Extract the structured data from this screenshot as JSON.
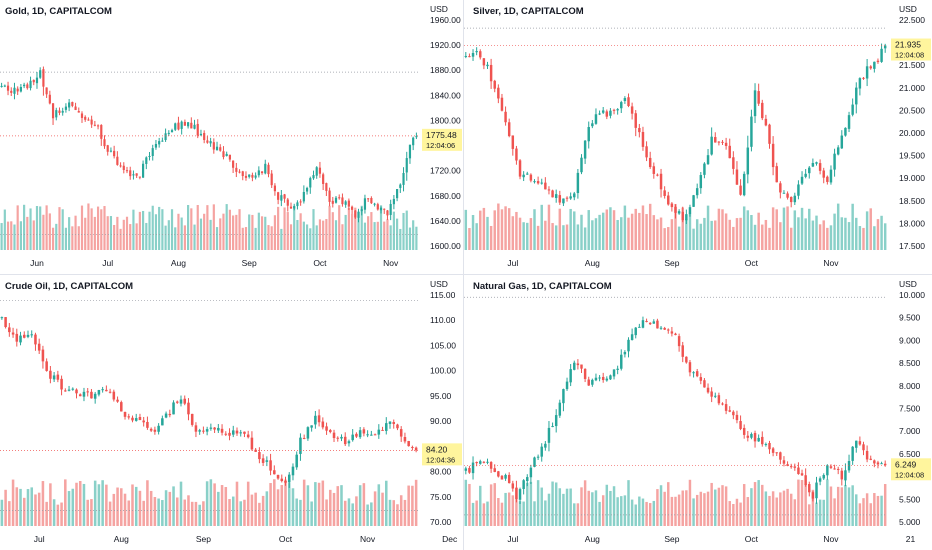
{
  "layout": {
    "name": "four-panel chart grid",
    "panels": 4
  },
  "colors": {
    "up": "#26a69a",
    "down": "#ef5350",
    "up_volume": "#89d0c8",
    "down_volume": "#f5a3a1",
    "price_label_bg": "#fff59d",
    "axis_text": "#131722",
    "reference_line": "#9598a1",
    "last_price_line": "#ef5350"
  },
  "chart_data": [
    {
      "type": "candlestick",
      "title": "Gold, 1D, CAPITALCOM",
      "currency": "USD",
      "y_ticks": [
        "1960.00",
        "1920.00",
        "1880.00",
        "1840.00",
        "1800.00",
        "1760.00",
        "1720.00",
        "1680.00",
        "1640.00",
        "1600.00"
      ],
      "ylim": [
        1600,
        1960
      ],
      "x_ticks": [
        "Jun",
        "Jul",
        "Aug",
        "Sep",
        "Oct",
        "Nov"
      ],
      "x_tick_positions": [
        11,
        33,
        55,
        77,
        99,
        121
      ],
      "num_bars": 130,
      "last_price": "1775.48",
      "last_price_value": 1775.48,
      "countdown": "12:04:06",
      "reference_line": 1877,
      "volume_reference_fraction": 0.35,
      "closes": [
        [
          0,
          1852
        ],
        [
          6,
          1848
        ],
        [
          12,
          1875
        ],
        [
          16,
          1810
        ],
        [
          20,
          1825
        ],
        [
          24,
          1812
        ],
        [
          30,
          1785
        ],
        [
          34,
          1745
        ],
        [
          38,
          1720
        ],
        [
          42,
          1705
        ],
        [
          46,
          1745
        ],
        [
          52,
          1785
        ],
        [
          58,
          1798
        ],
        [
          64,
          1765
        ],
        [
          70,
          1740
        ],
        [
          76,
          1710
        ],
        [
          82,
          1725
        ],
        [
          86,
          1680
        ],
        [
          90,
          1660
        ],
        [
          94,
          1680
        ],
        [
          98,
          1730
        ],
        [
          102,
          1668
        ],
        [
          106,
          1672
        ],
        [
          110,
          1652
        ],
        [
          114,
          1678
        ],
        [
          120,
          1648
        ],
        [
          124,
          1700
        ],
        [
          127,
          1765
        ],
        [
          129,
          1775
        ]
      ]
    },
    {
      "type": "candlestick",
      "title": "Silver, 1D, CAPITALCOM",
      "currency": "USD",
      "y_ticks": [
        "22.500",
        "22.000",
        "21.500",
        "21.000",
        "20.500",
        "20.000",
        "19.500",
        "19.000",
        "18.500",
        "18.000",
        "17.500"
      ],
      "ylim": [
        17.5,
        22.5
      ],
      "x_ticks": [
        "Jul",
        "Aug",
        "Sep",
        "Oct",
        "Nov"
      ],
      "x_tick_positions": [
        13,
        35,
        57,
        79,
        101
      ],
      "num_bars": 117,
      "last_price": "21.935",
      "last_price_value": 21.935,
      "countdown": "12:04:08",
      "reference_line": 22.32,
      "volume_reference_fraction": 0,
      "closes": [
        [
          0,
          21.65
        ],
        [
          3,
          21.75
        ],
        [
          6,
          21.5
        ],
        [
          9,
          20.7
        ],
        [
          12,
          19.9
        ],
        [
          15,
          19.1
        ],
        [
          18,
          19.0
        ],
        [
          21,
          18.9
        ],
        [
          24,
          18.6
        ],
        [
          27,
          18.5
        ],
        [
          30,
          18.7
        ],
        [
          33,
          19.9
        ],
        [
          36,
          20.5
        ],
        [
          40,
          20.4
        ],
        [
          44,
          20.8
        ],
        [
          47,
          20.2
        ],
        [
          50,
          19.4
        ],
        [
          53,
          19.0
        ],
        [
          56,
          18.5
        ],
        [
          60,
          18.1
        ],
        [
          64,
          18.7
        ],
        [
          68,
          19.9
        ],
        [
          72,
          19.7
        ],
        [
          76,
          18.6
        ],
        [
          80,
          20.9
        ],
        [
          83,
          20.1
        ],
        [
          86,
          18.9
        ],
        [
          90,
          18.4
        ],
        [
          93,
          19.0
        ],
        [
          96,
          19.4
        ],
        [
          100,
          19.0
        ],
        [
          104,
          19.9
        ],
        [
          106,
          20.4
        ],
        [
          108,
          21.0
        ],
        [
          111,
          21.4
        ],
        [
          114,
          21.6
        ],
        [
          116,
          21.935
        ]
      ]
    },
    {
      "type": "candlestick",
      "title": "Crude Oil, 1D, CAPITALCOM",
      "currency": "USD",
      "y_ticks": [
        "115.00",
        "110.00",
        "105.00",
        "100.00",
        "95.00",
        "90.00",
        "85.00",
        "80.00",
        "75.00",
        "70.00"
      ],
      "ylim": [
        70,
        115
      ],
      "x_ticks": [
        "Jul",
        "Aug",
        "Sep",
        "Oct",
        "Nov",
        "Dec"
      ],
      "x_tick_positions": [
        10,
        32,
        54,
        76,
        98,
        120
      ],
      "num_bars": 112,
      "last_price": "84.20",
      "last_price_value": 84.2,
      "countdown": "12:04:36",
      "reference_line": 113.9,
      "volume_reference_fraction": 0.35,
      "closes": [
        [
          0,
          110
        ],
        [
          4,
          106
        ],
        [
          8,
          108
        ],
        [
          12,
          100
        ],
        [
          16,
          97
        ],
        [
          20,
          96
        ],
        [
          24,
          95
        ],
        [
          28,
          96
        ],
        [
          32,
          92
        ],
        [
          36,
          90
        ],
        [
          40,
          88
        ],
        [
          44,
          91
        ],
        [
          48,
          95
        ],
        [
          52,
          88
        ],
        [
          56,
          89
        ],
        [
          60,
          87
        ],
        [
          64,
          88
        ],
        [
          68,
          84
        ],
        [
          72,
          81
        ],
        [
          76,
          77
        ],
        [
          80,
          86
        ],
        [
          84,
          91
        ],
        [
          88,
          88
        ],
        [
          92,
          86
        ],
        [
          96,
          88
        ],
        [
          100,
          87
        ],
        [
          104,
          90
        ],
        [
          108,
          86
        ],
        [
          111,
          84.2
        ]
      ]
    },
    {
      "type": "candlestick",
      "title": "Natural Gas, 1D, CAPITALCOM",
      "currency": "USD",
      "y_ticks": [
        "10.000",
        "9.500",
        "9.000",
        "8.500",
        "8.000",
        "7.500",
        "7.000",
        "6.500",
        "6.000",
        "5.500",
        "5.000"
      ],
      "ylim": [
        5.0,
        10.0
      ],
      "x_ticks": [
        "Jul",
        "Aug",
        "Sep",
        "Oct",
        "Nov",
        "21"
      ],
      "x_tick_positions": [
        13,
        35,
        57,
        79,
        101,
        123
      ],
      "num_bars": 117,
      "last_price": "6.249",
      "last_price_value": 6.249,
      "countdown": "12:04:08",
      "reference_line": 9.95,
      "volume_reference_fraction": 0.25,
      "closes": [
        [
          0,
          6.1
        ],
        [
          4,
          6.4
        ],
        [
          8,
          6.1
        ],
        [
          12,
          5.9
        ],
        [
          14,
          5.6
        ],
        [
          18,
          6.2
        ],
        [
          22,
          6.8
        ],
        [
          26,
          7.6
        ],
        [
          30,
          8.6
        ],
        [
          34,
          8.1
        ],
        [
          38,
          8.2
        ],
        [
          42,
          8.4
        ],
        [
          46,
          9.2
        ],
        [
          50,
          9.5
        ],
        [
          54,
          9.3
        ],
        [
          58,
          9.1
        ],
        [
          62,
          8.3
        ],
        [
          66,
          8.0
        ],
        [
          70,
          7.6
        ],
        [
          74,
          7.3
        ],
        [
          78,
          6.9
        ],
        [
          82,
          6.8
        ],
        [
          86,
          6.5
        ],
        [
          90,
          6.2
        ],
        [
          94,
          5.9
        ],
        [
          96,
          5.6
        ],
        [
          100,
          6.3
        ],
        [
          104,
          6.0
        ],
        [
          108,
          6.8
        ],
        [
          112,
          6.3
        ],
        [
          116,
          6.249
        ]
      ]
    }
  ]
}
